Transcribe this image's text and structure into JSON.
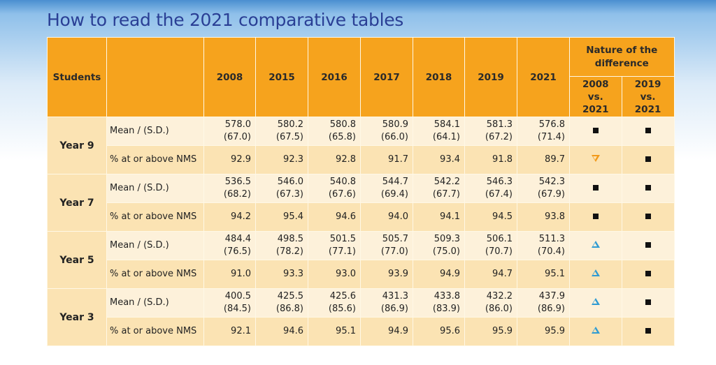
{
  "title": "How to read the 2021 comparative tables",
  "header": {
    "students": "Students",
    "years": [
      "2008",
      "2015",
      "2016",
      "2017",
      "2018",
      "2019",
      "2021"
    ],
    "nature": "Nature of the difference",
    "diff_cols": [
      "2008 vs. 2021",
      "2019 vs. 2021"
    ]
  },
  "legend_symbols": {
    "square": "no significant difference",
    "triangle-up": "significantly higher",
    "triangle-down": "significantly lower"
  },
  "colors": {
    "header": "#f6a31d",
    "up": "#2f9bd3",
    "down": "#f29a1a",
    "title": "#2a3f95"
  },
  "groups": [
    {
      "name": "Year 9",
      "mean_label": "Mean / (S.D.)",
      "mean": [
        "578.0",
        "580.2",
        "580.8",
        "580.9",
        "584.1",
        "581.3",
        "576.8"
      ],
      "sd": [
        "(67.0)",
        "(67.5)",
        "(65.8)",
        "(66.0)",
        "(64.1)",
        "(67.2)",
        "(71.4)"
      ],
      "mean_diff": [
        "square",
        "square"
      ],
      "nms_label": "% at or above NMS",
      "nms": [
        "92.9",
        "92.3",
        "92.8",
        "91.7",
        "93.4",
        "91.8",
        "89.7"
      ],
      "nms_diff": [
        "triangle-down",
        "square"
      ]
    },
    {
      "name": "Year 7",
      "mean_label": "Mean / (S.D.)",
      "mean": [
        "536.5",
        "546.0",
        "540.8",
        "544.7",
        "542.2",
        "546.3",
        "542.3"
      ],
      "sd": [
        "(68.2)",
        "(67.3)",
        "(67.6)",
        "(69.4)",
        "(67.7)",
        "(67.4)",
        "(67.9)"
      ],
      "mean_diff": [
        "square",
        "square"
      ],
      "nms_label": "% at or above NMS",
      "nms": [
        "94.2",
        "95.4",
        "94.6",
        "94.0",
        "94.1",
        "94.5",
        "93.8"
      ],
      "nms_diff": [
        "square",
        "square"
      ]
    },
    {
      "name": "Year 5",
      "mean_label": "Mean / (S.D.)",
      "mean": [
        "484.4",
        "498.5",
        "501.5",
        "505.7",
        "509.3",
        "506.1",
        "511.3"
      ],
      "sd": [
        "(76.5)",
        "(78.2)",
        "(77.1)",
        "(77.0)",
        "(75.0)",
        "(70.7)",
        "(70.4)"
      ],
      "mean_diff": [
        "triangle-up",
        "square"
      ],
      "nms_label": "% at or above NMS",
      "nms": [
        "91.0",
        "93.3",
        "93.0",
        "93.9",
        "94.9",
        "94.7",
        "95.1"
      ],
      "nms_diff": [
        "triangle-up",
        "square"
      ]
    },
    {
      "name": "Year 3",
      "mean_label": "Mean / (S.D.)",
      "mean": [
        "400.5",
        "425.5",
        "425.6",
        "431.3",
        "433.8",
        "432.2",
        "437.9"
      ],
      "sd": [
        "(84.5)",
        "(86.8)",
        "(85.6)",
        "(86.9)",
        "(83.9)",
        "(86.0)",
        "(86.9)"
      ],
      "mean_diff": [
        "triangle-up",
        "square"
      ],
      "nms_label": "% at or above NMS",
      "nms": [
        "92.1",
        "94.6",
        "95.1",
        "94.9",
        "95.6",
        "95.9",
        "95.9"
      ],
      "nms_diff": [
        "triangle-up",
        "square"
      ]
    }
  ]
}
